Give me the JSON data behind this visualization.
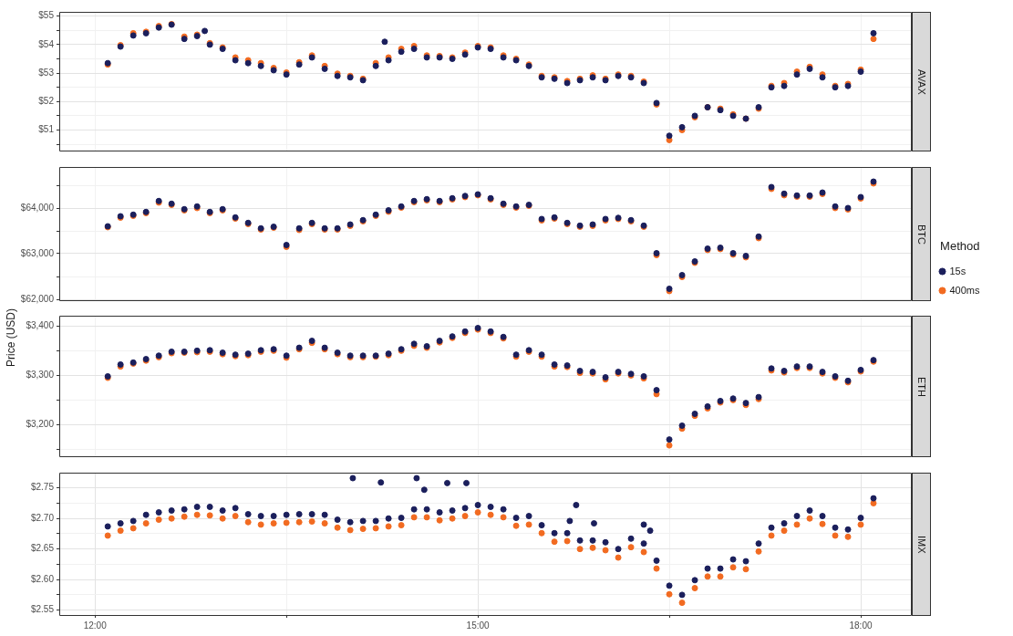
{
  "chart_data": [
    {
      "type": "scatter",
      "title": "AVAX",
      "grid": true,
      "marker": "circle",
      "tick_labels": "y",
      "xlim": [
        11.72,
        18.4
      ],
      "xticks": [
        {
          "value": 12,
          "label": null
        },
        {
          "value": 13.5,
          "label": null
        },
        {
          "value": 15,
          "label": null
        },
        {
          "value": 16.5,
          "label": null
        },
        {
          "value": 18,
          "label": null
        }
      ],
      "ylim": [
        50.28,
        55.15
      ],
      "yticks": [
        {
          "value": 50.5,
          "label": null
        },
        {
          "value": 51,
          "label": "$51"
        },
        {
          "value": 51.5,
          "label": null
        },
        {
          "value": 52,
          "label": "$52"
        },
        {
          "value": 52.5,
          "label": null
        },
        {
          "value": 53,
          "label": "$53"
        },
        {
          "value": 53.5,
          "label": null
        },
        {
          "value": 54,
          "label": "$54"
        },
        {
          "value": 54.5,
          "label": null
        },
        {
          "value": 55,
          "label": "$55"
        }
      ],
      "x": [
        12.1,
        12.2,
        12.3,
        12.4,
        12.5,
        12.6,
        12.7,
        12.8,
        12.9,
        13.0,
        13.1,
        13.2,
        13.3,
        13.4,
        13.5,
        13.6,
        13.7,
        13.8,
        13.9,
        14.0,
        14.1,
        14.2,
        14.3,
        14.4,
        14.5,
        14.6,
        14.7,
        14.8,
        14.9,
        15.0,
        15.1,
        15.2,
        15.3,
        15.4,
        15.5,
        15.6,
        15.7,
        15.8,
        15.9,
        16.0,
        16.1,
        16.2,
        16.3,
        16.4,
        16.5,
        16.6,
        16.7,
        16.8,
        16.9,
        17.0,
        17.1,
        17.2,
        17.3,
        17.4,
        17.5,
        17.6,
        17.7,
        17.8,
        17.9,
        18.0,
        18.1
      ],
      "series": [
        {
          "color": "#1b1f5c",
          "x": [
            12.1,
            12.2,
            12.3,
            12.4,
            12.5,
            12.6,
            12.7,
            12.8,
            12.9,
            13.0,
            13.1,
            13.2,
            13.3,
            13.4,
            13.5,
            13.6,
            13.7,
            13.8,
            13.9,
            14.0,
            14.1,
            14.2,
            14.3,
            14.4,
            14.5,
            14.6,
            14.7,
            14.8,
            14.9,
            15.0,
            15.1,
            15.2,
            15.3,
            15.4,
            15.5,
            15.6,
            15.7,
            15.8,
            15.9,
            16.0,
            16.1,
            16.2,
            16.3,
            16.4,
            16.5,
            16.6,
            16.7,
            16.8,
            16.9,
            17.0,
            17.1,
            17.2,
            17.3,
            17.4,
            17.5,
            17.6,
            17.7,
            17.8,
            17.9,
            18.0,
            18.1,
            12.86,
            14.27
          ],
          "values": [
            53.35,
            53.93,
            54.32,
            54.4,
            54.6,
            54.7,
            54.2,
            54.3,
            54.0,
            53.85,
            53.45,
            53.35,
            53.25,
            53.1,
            52.95,
            53.3,
            53.55,
            53.15,
            52.9,
            52.85,
            52.75,
            53.25,
            53.45,
            53.75,
            53.85,
            53.55,
            53.55,
            53.5,
            53.65,
            53.9,
            53.85,
            53.55,
            53.45,
            53.25,
            52.85,
            52.8,
            52.65,
            52.75,
            52.85,
            52.75,
            52.9,
            52.85,
            52.65,
            51.95,
            50.8,
            51.1,
            51.5,
            51.8,
            51.7,
            51.5,
            51.4,
            51.8,
            52.5,
            52.55,
            52.95,
            53.15,
            52.85,
            52.5,
            52.55,
            53.05,
            54.4,
            54.48,
            54.1
          ]
        },
        {
          "color": "#f26b21",
          "values": [
            53.3,
            53.98,
            54.4,
            54.45,
            54.65,
            54.72,
            54.28,
            54.35,
            54.05,
            53.9,
            53.55,
            53.45,
            53.35,
            53.18,
            53.02,
            53.38,
            53.62,
            53.25,
            52.98,
            52.9,
            52.8,
            53.35,
            53.55,
            53.85,
            53.95,
            53.62,
            53.6,
            53.55,
            53.72,
            53.95,
            53.9,
            53.62,
            53.5,
            53.3,
            52.9,
            52.85,
            52.72,
            52.8,
            52.92,
            52.8,
            52.95,
            52.9,
            52.7,
            51.9,
            50.65,
            51.0,
            51.45,
            51.8,
            51.75,
            51.55,
            51.4,
            51.75,
            52.55,
            52.65,
            53.05,
            53.22,
            52.95,
            52.55,
            52.62,
            53.12,
            54.2
          ]
        }
      ]
    },
    {
      "type": "scatter",
      "title": "BTC",
      "grid": true,
      "marker": "circle",
      "tick_labels": "y",
      "ylabel": "Price (USD)",
      "legend": "right",
      "legend_title": "Method",
      "xlim": [
        11.72,
        18.4
      ],
      "xticks": [
        {
          "value": 12,
          "label": null
        },
        {
          "value": 13.5,
          "label": null
        },
        {
          "value": 15,
          "label": null
        },
        {
          "value": 16.5,
          "label": null
        },
        {
          "value": 18,
          "label": null
        }
      ],
      "ylim": [
        61980,
        64900
      ],
      "yticks": [
        {
          "value": 62000,
          "label": "$62,000"
        },
        {
          "value": 62500,
          "label": null
        },
        {
          "value": 63000,
          "label": "$63,000"
        },
        {
          "value": 63500,
          "label": null
        },
        {
          "value": 64000,
          "label": "$64,000"
        },
        {
          "value": 64500,
          "label": null
        }
      ],
      "x": [
        12.1,
        12.2,
        12.3,
        12.4,
        12.5,
        12.6,
        12.7,
        12.8,
        12.9,
        13.0,
        13.1,
        13.2,
        13.3,
        13.4,
        13.5,
        13.6,
        13.7,
        13.8,
        13.9,
        14.0,
        14.1,
        14.2,
        14.3,
        14.4,
        14.5,
        14.6,
        14.7,
        14.8,
        14.9,
        15.0,
        15.1,
        15.2,
        15.3,
        15.4,
        15.5,
        15.6,
        15.7,
        15.8,
        15.9,
        16.0,
        16.1,
        16.2,
        16.3,
        16.4,
        16.5,
        16.6,
        16.7,
        16.8,
        16.9,
        17.0,
        17.1,
        17.2,
        17.3,
        17.4,
        17.5,
        17.6,
        17.7,
        17.8,
        17.9,
        18.0,
        18.1
      ],
      "series": [
        {
          "name": "15s",
          "color": "#1b1f5c",
          "values": [
            63600,
            63820,
            63855,
            63915,
            64155,
            64095,
            63975,
            64035,
            63915,
            63975,
            63795,
            63675,
            63555,
            63590,
            63190,
            63555,
            63675,
            63555,
            63555,
            63640,
            63735,
            63855,
            63950,
            64035,
            64155,
            64195,
            64155,
            64215,
            64265,
            64300,
            64215,
            64095,
            64035,
            64070,
            63760,
            63795,
            63675,
            63615,
            63640,
            63760,
            63785,
            63735,
            63615,
            63010,
            62230,
            62530,
            62830,
            63110,
            63130,
            63010,
            62950,
            63375,
            64460,
            64315,
            64275,
            64275,
            64340,
            64035,
            64000,
            64240,
            64580
          ]
        },
        {
          "name": "400ms",
          "color": "#f26b21",
          "values": [
            63580,
            63790,
            63830,
            63890,
            64120,
            64070,
            63950,
            64000,
            63890,
            63950,
            63770,
            63650,
            63530,
            63570,
            63150,
            63520,
            63650,
            63530,
            63530,
            63610,
            63710,
            63830,
            63920,
            64010,
            64130,
            64170,
            64130,
            64190,
            64240,
            64280,
            64190,
            64070,
            64010,
            64050,
            63730,
            63770,
            63650,
            63590,
            63610,
            63730,
            63760,
            63710,
            63590,
            62970,
            62180,
            62490,
            62800,
            63080,
            63100,
            62980,
            62920,
            63340,
            64420,
            64280,
            64250,
            64250,
            64310,
            64000,
            63970,
            64210,
            64540
          ]
        }
      ]
    },
    {
      "type": "scatter",
      "title": "ETH",
      "grid": true,
      "marker": "circle",
      "tick_labels": "y",
      "xlim": [
        11.72,
        18.4
      ],
      "xticks": [
        {
          "value": 12,
          "label": null
        },
        {
          "value": 13.5,
          "label": null
        },
        {
          "value": 15,
          "label": null
        },
        {
          "value": 16.5,
          "label": null
        },
        {
          "value": 18,
          "label": null
        }
      ],
      "ylim": [
        3136,
        3421
      ],
      "yticks": [
        {
          "value": 3150,
          "label": null
        },
        {
          "value": 3200,
          "label": "$3,200"
        },
        {
          "value": 3250,
          "label": null
        },
        {
          "value": 3300,
          "label": "$3,300"
        },
        {
          "value": 3350,
          "label": null
        },
        {
          "value": 3400,
          "label": "$3,400"
        }
      ],
      "x": [
        12.1,
        12.2,
        12.3,
        12.4,
        12.5,
        12.6,
        12.7,
        12.8,
        12.9,
        13.0,
        13.1,
        13.2,
        13.3,
        13.4,
        13.5,
        13.6,
        13.7,
        13.8,
        13.9,
        14.0,
        14.1,
        14.2,
        14.3,
        14.4,
        14.5,
        14.6,
        14.7,
        14.8,
        14.9,
        15.0,
        15.1,
        15.2,
        15.3,
        15.4,
        15.5,
        15.6,
        15.7,
        15.8,
        15.9,
        16.0,
        16.1,
        16.2,
        16.3,
        16.4,
        16.5,
        16.6,
        16.7,
        16.8,
        16.9,
        17.0,
        17.1,
        17.2,
        17.3,
        17.4,
        17.5,
        17.6,
        17.7,
        17.8,
        17.9,
        18.0,
        18.1
      ],
      "series": [
        {
          "color": "#1b1f5c",
          "values": [
            3298,
            3322,
            3326,
            3333,
            3340,
            3348,
            3348,
            3350,
            3351,
            3346,
            3342,
            3344,
            3351,
            3353,
            3340,
            3356,
            3370,
            3356,
            3346,
            3340,
            3340,
            3340,
            3344,
            3353,
            3364,
            3359,
            3370,
            3379,
            3389,
            3396,
            3389,
            3378,
            3342,
            3351,
            3342,
            3322,
            3320,
            3309,
            3307,
            3296,
            3307,
            3303,
            3298,
            3270,
            3170,
            3198,
            3222,
            3237,
            3248,
            3253,
            3244,
            3256,
            3314,
            3309,
            3318,
            3318,
            3307,
            3298,
            3289,
            3311,
            3331
          ]
        },
        {
          "color": "#f26b21",
          "values": [
            3295,
            3318,
            3324,
            3330,
            3337,
            3345,
            3346,
            3347,
            3348,
            3343,
            3339,
            3341,
            3348,
            3350,
            3336,
            3353,
            3366,
            3353,
            3343,
            3337,
            3337,
            3338,
            3341,
            3350,
            3360,
            3356,
            3367,
            3376,
            3386,
            3393,
            3386,
            3375,
            3338,
            3348,
            3338,
            3318,
            3317,
            3305,
            3304,
            3292,
            3304,
            3300,
            3294,
            3262,
            3158,
            3192,
            3218,
            3233,
            3245,
            3250,
            3240,
            3252,
            3310,
            3306,
            3315,
            3315,
            3304,
            3295,
            3286,
            3308,
            3328
          ]
        }
      ]
    },
    {
      "type": "scatter",
      "title": "IMX",
      "grid": true,
      "marker": "circle",
      "xlim": [
        11.72,
        18.4
      ],
      "xticks": [
        {
          "value": 12,
          "label": "12:00"
        },
        {
          "value": 13.5,
          "label": null
        },
        {
          "value": 15,
          "label": "15:00"
        },
        {
          "value": 16.5,
          "label": null
        },
        {
          "value": 18,
          "label": "18:00"
        }
      ],
      "ylim": [
        2.542,
        2.775
      ],
      "yticks": [
        {
          "value": 2.55,
          "label": "$2.55"
        },
        {
          "value": 2.575,
          "label": null
        },
        {
          "value": 2.6,
          "label": "$2.60"
        },
        {
          "value": 2.625,
          "label": null
        },
        {
          "value": 2.65,
          "label": "$2.65"
        },
        {
          "value": 2.675,
          "label": null
        },
        {
          "value": 2.7,
          "label": "$2.70"
        },
        {
          "value": 2.725,
          "label": null
        },
        {
          "value": 2.75,
          "label": "$2.75"
        }
      ],
      "x": [
        12.1,
        12.2,
        12.3,
        12.4,
        12.5,
        12.6,
        12.7,
        12.8,
        12.9,
        13.0,
        13.1,
        13.2,
        13.3,
        13.4,
        13.5,
        13.6,
        13.7,
        13.8,
        13.9,
        14.0,
        14.1,
        14.2,
        14.3,
        14.4,
        14.5,
        14.6,
        14.7,
        14.8,
        14.9,
        15.0,
        15.1,
        15.2,
        15.3,
        15.4,
        15.5,
        15.6,
        15.7,
        15.8,
        15.9,
        16.0,
        16.1,
        16.2,
        16.3,
        16.4,
        16.5,
        16.6,
        16.7,
        16.8,
        16.9,
        17.0,
        17.1,
        17.2,
        17.3,
        17.4,
        17.5,
        17.6,
        17.7,
        17.8,
        17.9,
        18.0,
        18.1
      ],
      "series": [
        {
          "color": "#1b1f5c",
          "x": [
            12.1,
            12.2,
            12.3,
            12.4,
            12.5,
            12.6,
            12.7,
            12.8,
            12.9,
            13.0,
            13.1,
            13.2,
            13.3,
            13.4,
            13.5,
            13.6,
            13.7,
            13.8,
            13.9,
            14.0,
            14.1,
            14.2,
            14.3,
            14.4,
            14.5,
            14.6,
            14.7,
            14.8,
            14.9,
            15.0,
            15.1,
            15.2,
            15.3,
            15.4,
            15.5,
            15.6,
            15.7,
            15.8,
            15.9,
            16.0,
            16.1,
            16.2,
            16.3,
            16.4,
            16.5,
            16.6,
            16.7,
            16.8,
            16.9,
            17.0,
            17.1,
            17.2,
            17.3,
            17.4,
            17.5,
            17.6,
            17.7,
            17.8,
            17.9,
            18.0,
            18.1,
            14.02,
            14.24,
            14.52,
            14.58,
            14.76,
            14.91,
            15.72,
            15.77,
            15.91,
            16.3,
            16.35
          ],
          "values": [
            2.687,
            2.692,
            2.696,
            2.706,
            2.71,
            2.713,
            2.715,
            2.719,
            2.719,
            2.713,
            2.717,
            2.707,
            2.704,
            2.704,
            2.706,
            2.707,
            2.707,
            2.706,
            2.698,
            2.694,
            2.696,
            2.696,
            2.7,
            2.701,
            2.715,
            2.715,
            2.71,
            2.713,
            2.717,
            2.722,
            2.719,
            2.715,
            2.701,
            2.704,
            2.689,
            2.676,
            2.676,
            2.664,
            2.664,
            2.661,
            2.65,
            2.667,
            2.659,
            2.631,
            2.59,
            2.575,
            2.599,
            2.618,
            2.618,
            2.633,
            2.63,
            2.659,
            2.685,
            2.692,
            2.704,
            2.713,
            2.704,
            2.685,
            2.682,
            2.701,
            2.733,
            2.766,
            2.759,
            2.766,
            2.747,
            2.758,
            2.758,
            2.696,
            2.722,
            2.692,
            2.69,
            2.68
          ]
        },
        {
          "color": "#f26b21",
          "values": [
            2.672,
            2.68,
            2.684,
            2.692,
            2.698,
            2.7,
            2.703,
            2.706,
            2.705,
            2.7,
            2.704,
            2.694,
            2.69,
            2.692,
            2.693,
            2.694,
            2.695,
            2.692,
            2.685,
            2.681,
            2.683,
            2.684,
            2.687,
            2.689,
            2.702,
            2.702,
            2.697,
            2.7,
            2.704,
            2.71,
            2.706,
            2.702,
            2.688,
            2.69,
            2.676,
            2.662,
            2.663,
            2.65,
            2.652,
            2.648,
            2.636,
            2.653,
            2.645,
            2.618,
            2.576,
            2.562,
            2.586,
            2.605,
            2.605,
            2.62,
            2.617,
            2.646,
            2.672,
            2.68,
            2.69,
            2.7,
            2.691,
            2.672,
            2.67,
            2.69,
            2.725
          ]
        }
      ]
    }
  ]
}
